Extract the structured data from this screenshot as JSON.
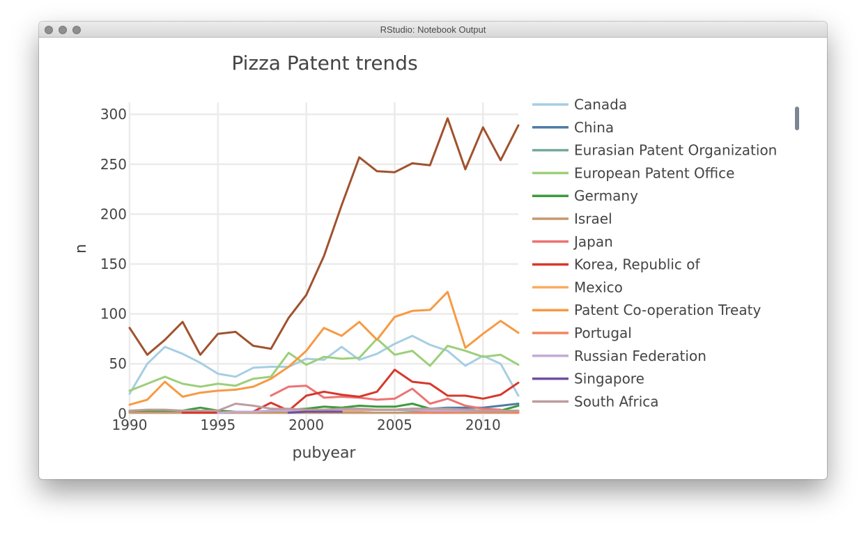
{
  "window": {
    "title": "RStudio: Notebook Output"
  },
  "chart_data": {
    "type": "line",
    "title": "Pizza Patent trends",
    "xlabel": "pubyear",
    "ylabel": "n",
    "xlim": [
      1990,
      2012
    ],
    "ylim": [
      -12,
      312
    ],
    "xticks": [
      1990,
      1995,
      2000,
      2005,
      2010
    ],
    "yticks": [
      0,
      50,
      100,
      150,
      200,
      250,
      300
    ],
    "grid": true,
    "legend_position": "right",
    "series": [
      {
        "name": "Canada",
        "color": "#a6cee3",
        "x": [
          1990,
          1991,
          1992,
          1993,
          1994,
          1995,
          1996,
          1997,
          1998,
          1999,
          2000,
          2001,
          2002,
          2003,
          2004,
          2005,
          2006,
          2007,
          2008,
          2009,
          2010,
          2011,
          2012
        ],
        "values": [
          20,
          50,
          67,
          60,
          51,
          40,
          37,
          46,
          47,
          47,
          55,
          54,
          67,
          54,
          60,
          70,
          78,
          69,
          63,
          48,
          58,
          50,
          18
        ]
      },
      {
        "name": "China",
        "color": "#4f7ba5",
        "x": [
          2002,
          2003,
          2004,
          2005,
          2006,
          2007,
          2008,
          2009,
          2010,
          2011,
          2012
        ],
        "values": [
          2,
          3,
          4,
          4,
          5,
          5,
          6,
          6,
          6,
          8,
          10
        ]
      },
      {
        "name": "Eurasian Patent Organization",
        "color": "#74a99e",
        "x": [
          1998,
          1999,
          2000,
          2001,
          2002,
          2003,
          2004,
          2005,
          2006,
          2007,
          2008,
          2009,
          2010,
          2011,
          2012
        ],
        "values": [
          2,
          2,
          3,
          3,
          4,
          5,
          4,
          4,
          3,
          3,
          2,
          2,
          2,
          2,
          2
        ]
      },
      {
        "name": "European Patent Office",
        "color": "#9ccf79",
        "x": [
          1990,
          1991,
          1992,
          1993,
          1994,
          1995,
          1996,
          1997,
          1998,
          1999,
          2000,
          2001,
          2002,
          2003,
          2004,
          2005,
          2006,
          2007,
          2008,
          2009,
          2010,
          2011,
          2012
        ],
        "values": [
          23,
          30,
          37,
          30,
          27,
          30,
          28,
          35,
          37,
          61,
          49,
          57,
          55,
          56,
          75,
          59,
          63,
          48,
          68,
          63,
          57,
          59,
          49
        ]
      },
      {
        "name": "Germany",
        "color": "#3d9a3d",
        "x": [
          1990,
          1991,
          1992,
          1993,
          1994,
          1995,
          1996,
          1997,
          1998,
          1999,
          2000,
          2001,
          2002,
          2003,
          2004,
          2005,
          2006,
          2007,
          2008,
          2009,
          2010,
          2011,
          2012
        ],
        "values": [
          2,
          2,
          2,
          3,
          6,
          3,
          2,
          2,
          3,
          4,
          5,
          7,
          6,
          8,
          7,
          7,
          10,
          5,
          5,
          4,
          3,
          3,
          8
        ]
      },
      {
        "name": "Israel",
        "color": "#c5986b",
        "x": [
          1990,
          1991,
          1992,
          1993,
          1994,
          1995,
          1996,
          1997,
          1998,
          1999,
          2000,
          2001,
          2002,
          2003,
          2004,
          2005,
          2006,
          2007,
          2008,
          2009,
          2010,
          2011,
          2012
        ],
        "values": [
          1,
          1,
          1,
          1,
          1,
          1,
          1,
          1,
          1,
          1,
          1,
          1,
          1,
          1,
          1,
          1,
          1,
          1,
          1,
          1,
          1,
          1,
          1
        ]
      },
      {
        "name": "Japan",
        "color": "#ec7372",
        "x": [
          1998,
          1999,
          2000,
          2001,
          2002,
          2003,
          2004,
          2005,
          2006,
          2007,
          2008,
          2009,
          2010,
          2011
        ],
        "values": [
          18,
          27,
          28,
          16,
          17,
          16,
          14,
          15,
          25,
          10,
          15,
          8,
          5,
          4
        ]
      },
      {
        "name": "Korea, Republic of",
        "color": "#d7382c",
        "x": [
          1993,
          1994,
          1995,
          1996,
          1997,
          1998,
          1999,
          2000,
          2001,
          2002,
          2003,
          2004,
          2005,
          2006,
          2007,
          2008,
          2009,
          2010,
          2011,
          2012
        ],
        "values": [
          1,
          1,
          1,
          2,
          2,
          11,
          3,
          18,
          22,
          19,
          17,
          22,
          44,
          32,
          30,
          18,
          18,
          15,
          19,
          31
        ]
      },
      {
        "name": "Mexico",
        "color": "#fbac5f",
        "x": [
          1999,
          2000,
          2001,
          2002,
          2003,
          2004,
          2005,
          2006,
          2007,
          2008,
          2009,
          2010,
          2011,
          2012
        ],
        "values": [
          2,
          2,
          3,
          3,
          3,
          4,
          4,
          4,
          3,
          3,
          2,
          2,
          2,
          2
        ]
      },
      {
        "name": "Patent Co-operation Treaty",
        "color": "#f79a43",
        "x": [
          1990,
          1991,
          1992,
          1993,
          1994,
          1995,
          1996,
          1997,
          1998,
          1999,
          2000,
          2001,
          2002,
          2003,
          2004,
          2005,
          2006,
          2007,
          2008,
          2009,
          2010,
          2011,
          2012
        ],
        "values": [
          9,
          14,
          32,
          17,
          21,
          23,
          24,
          27,
          35,
          47,
          63,
          86,
          78,
          92,
          74,
          97,
          103,
          104,
          122,
          66,
          80,
          93,
          81
        ]
      },
      {
        "name": "Portugal",
        "color": "#f08560",
        "x": [
          2006,
          2007,
          2008,
          2009,
          2010,
          2011,
          2012
        ],
        "values": [
          1,
          1,
          1,
          2,
          2,
          2,
          1
        ]
      },
      {
        "name": "Russian Federation",
        "color": "#c4aad4",
        "x": [
          1995,
          1996,
          1997,
          1998,
          1999,
          2000,
          2001,
          2002,
          2003,
          2004,
          2005,
          2006,
          2007,
          2008,
          2009,
          2010,
          2011,
          2012
        ],
        "values": [
          1,
          2,
          2,
          3,
          3,
          3,
          4,
          4,
          4,
          4,
          4,
          4,
          3,
          3,
          3,
          3,
          3,
          3
        ]
      },
      {
        "name": "Singapore",
        "color": "#6e4fa1",
        "x": [
          1999,
          2000,
          2001,
          2002
        ],
        "values": [
          1,
          2,
          2,
          2
        ]
      },
      {
        "name": "South Africa",
        "color": "#bc9d9f",
        "x": [
          1990,
          1991,
          1992,
          1993,
          1994,
          1995,
          1996,
          1997,
          1998,
          1999,
          2000,
          2001,
          2002,
          2003,
          2004,
          2005,
          2006,
          2007,
          2008,
          2009,
          2010,
          2011,
          2012
        ],
        "values": [
          3,
          4,
          4,
          3,
          3,
          3,
          10,
          8,
          5,
          5,
          4,
          4,
          5,
          5,
          4,
          4,
          5,
          5,
          5,
          4,
          3,
          3,
          3
        ]
      },
      {
        "name": "",
        "color": "#a0522d",
        "x": [
          1990,
          1991,
          1992,
          1993,
          1994,
          1995,
          1996,
          1997,
          1998,
          1999,
          2000,
          2001,
          2002,
          2003,
          2004,
          2005,
          2006,
          2007,
          2008,
          2009,
          2010,
          2011,
          2012
        ],
        "values": [
          86,
          59,
          74,
          92,
          59,
          80,
          82,
          68,
          65,
          96,
          119,
          158,
          209,
          257,
          243,
          242,
          251,
          249,
          296,
          245,
          287,
          254,
          289
        ]
      }
    ]
  }
}
